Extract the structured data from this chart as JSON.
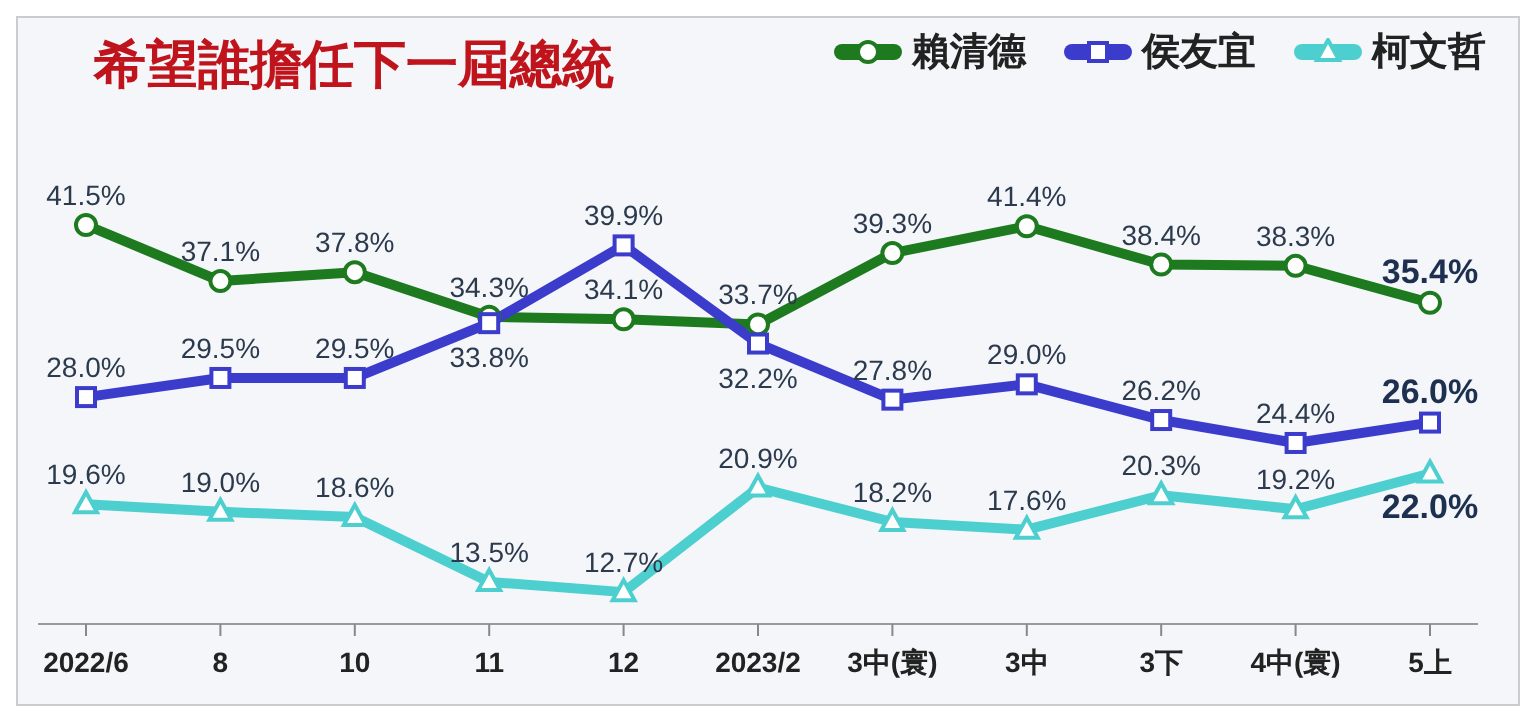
{
  "chart_data": {
    "type": "line",
    "title": "希望誰擔任下一屆總統",
    "categories": [
      "2022/6",
      "8",
      "10",
      "11",
      "12",
      "2023/2",
      "3中(寰)",
      "3中",
      "3下",
      "4中(寰)",
      "5上"
    ],
    "series": [
      {
        "name": "賴清德",
        "color": "#1e7a1e",
        "marker": "circle",
        "values": [
          41.5,
          37.1,
          37.8,
          34.3,
          34.1,
          33.7,
          39.3,
          41.4,
          38.4,
          38.3,
          35.4
        ],
        "value_labels": [
          "41.5%",
          "37.1%",
          "37.8%",
          "34.3%",
          "34.1%",
          "33.7%",
          "39.3%",
          "41.4%",
          "38.4%",
          "38.3%",
          "35.4%"
        ]
      },
      {
        "name": "侯友宜",
        "color": "#3c3ccc",
        "marker": "square",
        "values": [
          28.0,
          29.5,
          29.5,
          33.8,
          39.9,
          32.2,
          27.8,
          29.0,
          26.2,
          24.4,
          26.0
        ],
        "value_labels": [
          "28.0%",
          "29.5%",
          "29.5%",
          "33.8%",
          "39.9%",
          "32.2%",
          "27.8%",
          "29.0%",
          "26.2%",
          "24.4%",
          "26.0%"
        ]
      },
      {
        "name": "柯文哲",
        "color": "#4dcfcf",
        "marker": "triangle",
        "values": [
          19.6,
          19.0,
          18.6,
          13.5,
          12.7,
          20.9,
          18.2,
          17.6,
          20.3,
          19.2,
          22.0
        ],
        "value_labels": [
          "19.6%",
          "19.0%",
          "18.6%",
          "13.5%",
          "12.7%",
          "20.9%",
          "18.2%",
          "17.6%",
          "20.3%",
          "19.2%",
          "22.0%"
        ]
      }
    ],
    "legend": "top right"
  }
}
